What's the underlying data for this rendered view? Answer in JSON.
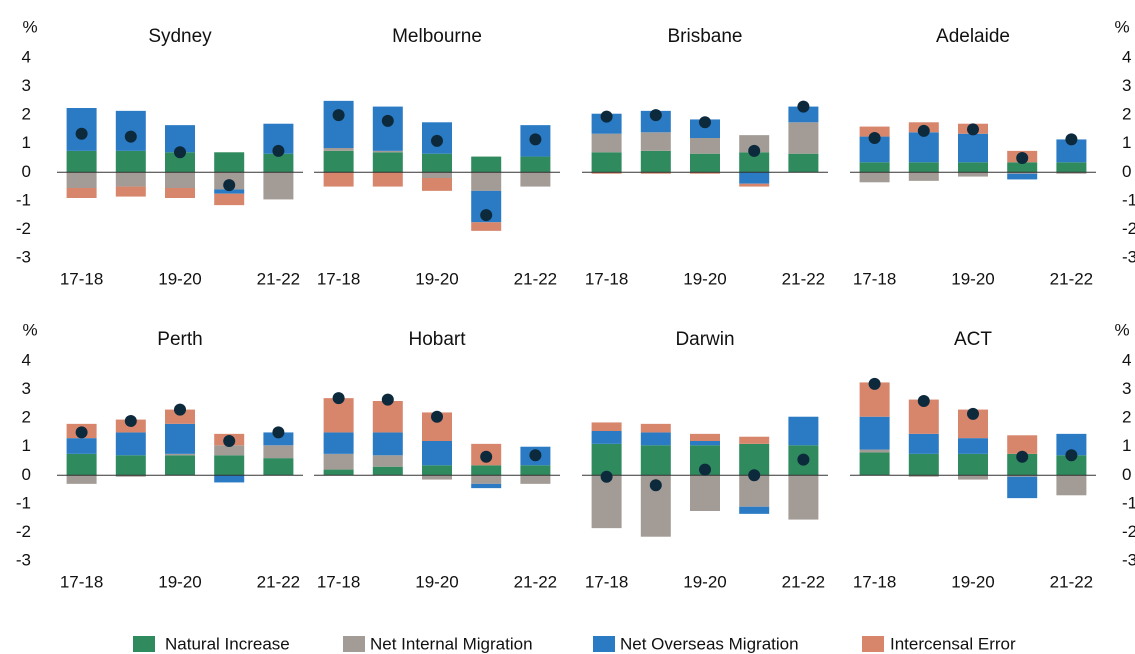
{
  "chart_data": {
    "type": "bar",
    "ylabel": "%",
    "ylim": [
      -3,
      4
    ],
    "yticks": [
      -3,
      -2,
      -1,
      0,
      1,
      2,
      3,
      4
    ],
    "categories": [
      "17-18",
      null,
      "19-20",
      null,
      "21-22"
    ],
    "series": [
      {
        "name": "Natural Increase",
        "color": "#2f8a5e"
      },
      {
        "name": "Net Internal Migration",
        "color": "#a39c96"
      },
      {
        "name": "Net Overseas Migration",
        "color": "#2b7bc4"
      },
      {
        "name": "Intercensal Error",
        "color": "#d7866c"
      }
    ],
    "total_color": "#0d2a3d",
    "panels": [
      {
        "title": "Sydney",
        "values": [
          [
            0.75,
            0.75,
            0.7,
            0.7,
            0.65
          ],
          [
            -0.55,
            -0.5,
            -0.55,
            -0.6,
            -0.95
          ],
          [
            1.5,
            1.4,
            0.95,
            -0.15,
            1.05
          ],
          [
            -0.35,
            -0.35,
            -0.35,
            -0.4,
            0
          ]
        ],
        "totals": [
          1.35,
          1.25,
          0.7,
          -0.45,
          0.75
        ]
      },
      {
        "title": "Melbourne",
        "values": [
          [
            0.75,
            0.7,
            0.65,
            0.55,
            0.55
          ],
          [
            0.1,
            0.05,
            -0.2,
            -0.65,
            -0.5
          ],
          [
            1.65,
            1.55,
            1.1,
            -1.1,
            1.1
          ],
          [
            -0.5,
            -0.5,
            -0.45,
            -0.3,
            0
          ]
        ],
        "totals": [
          2.0,
          1.8,
          1.1,
          -1.5,
          1.15
        ]
      },
      {
        "title": "Brisbane",
        "values": [
          [
            0.7,
            0.75,
            0.65,
            0.7,
            0.65
          ],
          [
            0.65,
            0.65,
            0.55,
            0.6,
            1.1
          ],
          [
            0.7,
            0.75,
            0.65,
            -0.4,
            0.55
          ],
          [
            -0.05,
            -0.05,
            -0.05,
            -0.1,
            0
          ]
        ],
        "totals": [
          1.95,
          2.0,
          1.75,
          0.75,
          2.3
        ]
      },
      {
        "title": "Adelaide",
        "values": [
          [
            0.35,
            0.35,
            0.35,
            0.35,
            0.35
          ],
          [
            -0.35,
            -0.3,
            -0.15,
            -0.05,
            -0.05
          ],
          [
            0.9,
            1.05,
            1.0,
            -0.2,
            0.8
          ],
          [
            0.35,
            0.35,
            0.35,
            0.4,
            0
          ]
        ],
        "totals": [
          1.2,
          1.45,
          1.5,
          0.5,
          1.15
        ]
      },
      {
        "title": "Perth",
        "values": [
          [
            0.75,
            0.7,
            0.7,
            0.7,
            0.6
          ],
          [
            -0.3,
            -0.05,
            0.05,
            0.35,
            0.45
          ],
          [
            0.55,
            0.8,
            1.05,
            -0.25,
            0.45
          ],
          [
            0.5,
            0.45,
            0.5,
            0.4,
            0
          ]
        ],
        "totals": [
          1.5,
          1.9,
          2.3,
          1.2,
          1.5
        ]
      },
      {
        "title": "Hobart",
        "values": [
          [
            0.2,
            0.3,
            0.35,
            0.35,
            0.35
          ],
          [
            0.55,
            0.4,
            -0.15,
            -0.3,
            -0.3
          ],
          [
            0.75,
            0.8,
            0.85,
            -0.15,
            0.65
          ],
          [
            1.2,
            1.1,
            1.0,
            0.75,
            0
          ]
        ],
        "totals": [
          2.7,
          2.65,
          2.05,
          0.65,
          0.7
        ]
      },
      {
        "title": "Darwin",
        "values": [
          [
            1.1,
            1.05,
            1.05,
            1.1,
            1.05
          ],
          [
            -1.85,
            -2.15,
            -1.25,
            -1.1,
            -1.55
          ],
          [
            0.45,
            0.45,
            0.15,
            -0.25,
            1.0
          ],
          [
            0.3,
            0.3,
            0.25,
            0.25,
            0
          ]
        ],
        "totals": [
          -0.05,
          -0.35,
          0.2,
          0.0,
          0.55
        ]
      },
      {
        "title": "ACT",
        "values": [
          [
            0.8,
            0.75,
            0.75,
            0.75,
            0.7
          ],
          [
            0.1,
            -0.05,
            -0.15,
            -0.05,
            -0.7
          ],
          [
            1.15,
            0.7,
            0.55,
            -0.75,
            0.75
          ],
          [
            1.2,
            1.2,
            1.0,
            0.65,
            0
          ]
        ],
        "totals": [
          3.2,
          2.6,
          2.15,
          0.65,
          0.7
        ]
      }
    ]
  }
}
